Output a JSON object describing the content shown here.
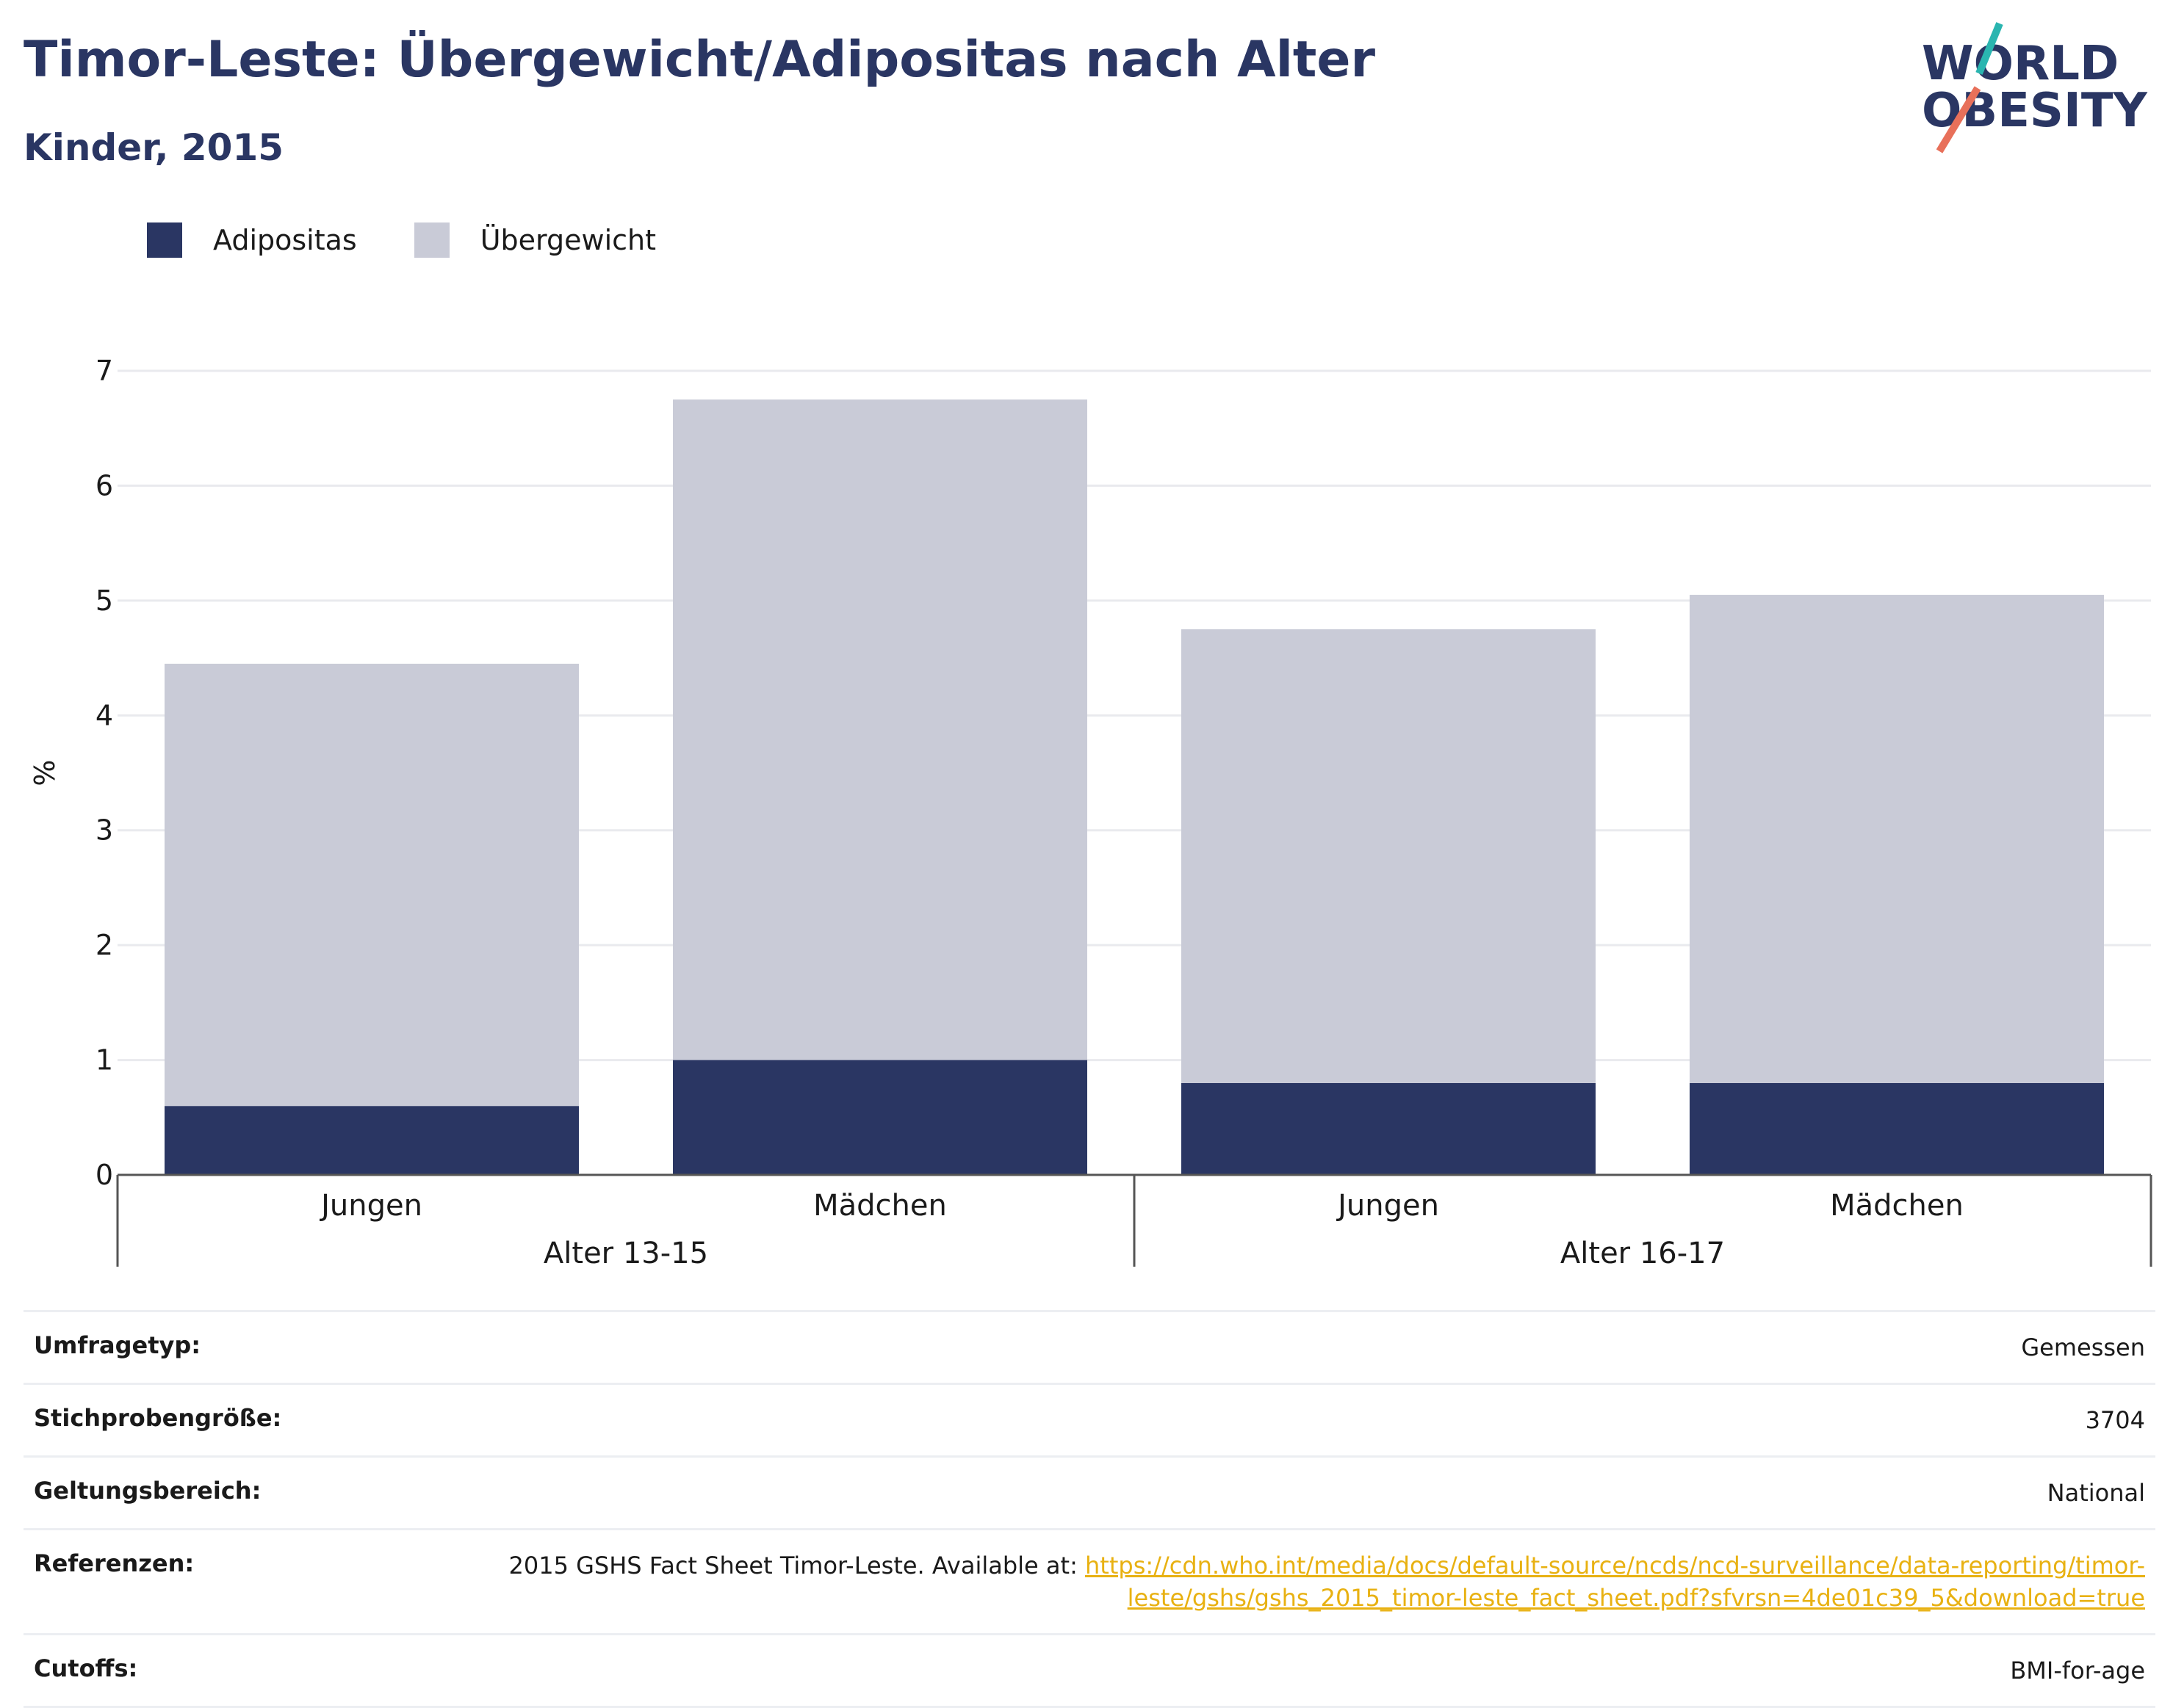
{
  "title": "Timor-Leste: Übergewicht/Adipositas nach Alter",
  "subtitle": "Kinder, 2015",
  "logo": {
    "line1": "WORLD",
    "line2": "OBESITY"
  },
  "colors": {
    "obesity": "#2a3663",
    "overweight": "#c9cbd7",
    "logo_teal": "#2ab5b0",
    "logo_coral": "#e8705a",
    "link": "#e8b112"
  },
  "chart_data": {
    "type": "bar",
    "stacked": true,
    "ylabel": "%",
    "ylim": [
      0,
      7
    ],
    "yticks": [
      "0",
      "1",
      "2",
      "3",
      "4",
      "5",
      "6",
      "7"
    ],
    "categories": [
      "Jungen",
      "Mädchen",
      "Jungen",
      "Mädchen"
    ],
    "groups": [
      {
        "label": "Alter 13-15",
        "categories": [
          0,
          1
        ]
      },
      {
        "label": "Alter 16-17",
        "categories": [
          2,
          3
        ]
      }
    ],
    "series": [
      {
        "name": "Adipositas",
        "values": [
          0.6,
          1.0,
          0.8,
          0.8
        ]
      },
      {
        "name": "Übergewicht",
        "values": [
          3.85,
          5.75,
          3.95,
          4.25
        ]
      }
    ],
    "legend_position": "top-left",
    "grid": true
  },
  "meta": [
    {
      "label": "Umfragetyp:",
      "value": "Gemessen"
    },
    {
      "label": "Stichprobengröße:",
      "value": "3704"
    },
    {
      "label": "Geltungsbereich:",
      "value": "National"
    },
    {
      "label": "Referenzen:",
      "value": "2015 GSHS Fact Sheet Timor-Leste. Available at:",
      "link": "https://cdn.who.int/media/docs/default-source/ncds/ncd-surveillance/data-reporting/timor-leste/gshs/gshs_2015_timor-leste_fact_sheet.pdf?sfvrsn=4de01c39_5&download=true"
    },
    {
      "label": "Cutoffs:",
      "value": "BMI-for-age"
    }
  ]
}
